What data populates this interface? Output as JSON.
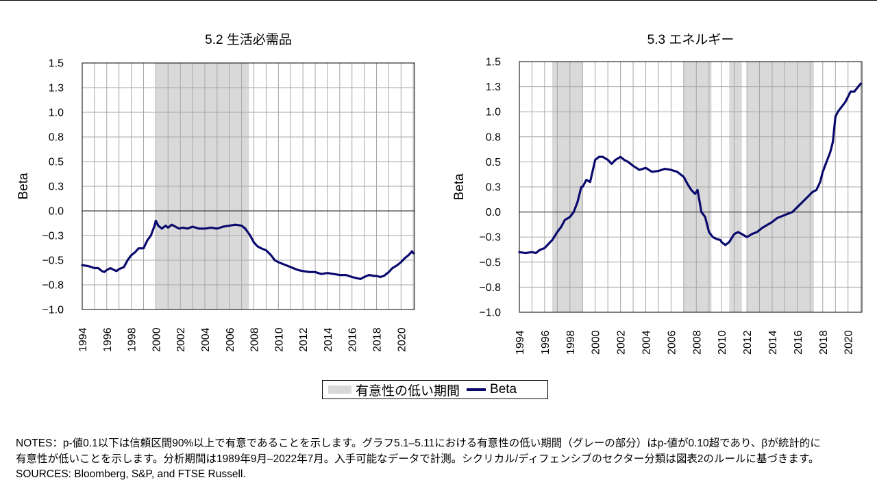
{
  "colors": {
    "shade": "#d9d9d9",
    "beta_line": "#0a0a6e",
    "grid": "#a6a6a6"
  },
  "legend": {
    "shade_label": "有意性の低い期間",
    "line_label": "Beta"
  },
  "notes": {
    "line1": "NOTES：p-値0.1以下は信頼区間90%以上で有意であることを示します。グラフ5.1–5.11における有意性の低い期間（グレーの部分）はp-値が0.10超であり、βが統計的に",
    "line2": "有意性が低いことを示します。分析期間は1989年9月–2022年7月。入手可能なデータで計測。シクリカル/ディフェンシブのセクター分類は図表2のルールに基づきます。",
    "sources": "SOURCES: Bloomberg, S&P, and FTSE Russell."
  },
  "chart_data": [
    {
      "type": "line",
      "title": "5.2 生活必需品",
      "ylabel": "Beta",
      "xlim": [
        1994,
        2021.1
      ],
      "ylim": [
        -1.0,
        1.5
      ],
      "x_ticks": [
        "1994",
        "1996",
        "1998",
        "2000",
        "2002",
        "2004",
        "2006",
        "2008",
        "2010",
        "2012",
        "2014",
        "2016",
        "2018",
        "2020"
      ],
      "y_ticks": [
        "1.5",
        "1.3",
        "1.0",
        "0.8",
        "0.5",
        "0.3",
        "0.0",
        "−0.3",
        "−0.5",
        "−0.8",
        "−1.0"
      ],
      "grid": true,
      "legend_position": "bottom-center",
      "shaded_periods": [
        [
          2000.0,
          2007.6
        ]
      ],
      "series": [
        {
          "name": "Beta",
          "x": [
            1994.0,
            1994.5,
            1995.0,
            1995.3,
            1995.6,
            1995.8,
            1996.0,
            1996.3,
            1996.6,
            1996.8,
            1997.0,
            1997.4,
            1997.7,
            1998.0,
            1998.3,
            1998.6,
            1999.0,
            1999.3,
            1999.6,
            1999.9,
            2000.0,
            2000.2,
            2000.5,
            2000.8,
            2001.0,
            2001.3,
            2001.6,
            2001.9,
            2002.2,
            2002.6,
            2003.0,
            2003.5,
            2004.0,
            2004.5,
            2005.0,
            2005.5,
            2006.0,
            2006.5,
            2007.0,
            2007.3,
            2007.7,
            2008.0,
            2008.3,
            2008.6,
            2009.0,
            2009.4,
            2009.7,
            2010.0,
            2010.4,
            2010.8,
            2011.2,
            2011.6,
            2012.0,
            2012.5,
            2013.0,
            2013.5,
            2014.0,
            2014.5,
            2015.0,
            2015.5,
            2016.0,
            2016.3,
            2016.7,
            2017.0,
            2017.4,
            2017.8,
            2018.0,
            2018.3,
            2018.6,
            2019.0,
            2019.3,
            2019.7,
            2020.0,
            2020.3,
            2020.6,
            2020.9,
            2021.0
          ],
          "values": [
            -0.55,
            -0.56,
            -0.58,
            -0.58,
            -0.61,
            -0.62,
            -0.6,
            -0.58,
            -0.6,
            -0.61,
            -0.59,
            -0.57,
            -0.5,
            -0.45,
            -0.42,
            -0.38,
            -0.38,
            -0.3,
            -0.25,
            -0.15,
            -0.1,
            -0.15,
            -0.18,
            -0.15,
            -0.17,
            -0.14,
            -0.16,
            -0.18,
            -0.17,
            -0.18,
            -0.16,
            -0.18,
            -0.18,
            -0.17,
            -0.18,
            -0.16,
            -0.15,
            -0.14,
            -0.15,
            -0.18,
            -0.25,
            -0.32,
            -0.36,
            -0.38,
            -0.4,
            -0.45,
            -0.5,
            -0.52,
            -0.54,
            -0.56,
            -0.58,
            -0.6,
            -0.61,
            -0.62,
            -0.62,
            -0.64,
            -0.63,
            -0.64,
            -0.65,
            -0.65,
            -0.67,
            -0.68,
            -0.69,
            -0.67,
            -0.65,
            -0.66,
            -0.66,
            -0.67,
            -0.66,
            -0.62,
            -0.58,
            -0.55,
            -0.52,
            -0.48,
            -0.45,
            -0.41,
            -0.43
          ]
        }
      ]
    },
    {
      "type": "line",
      "title": "5.3 エネルギー",
      "ylabel": "Beta",
      "xlim": [
        1994,
        2021.1
      ],
      "ylim": [
        -1.0,
        1.5
      ],
      "x_ticks": [
        "1994",
        "1996",
        "1998",
        "2000",
        "2002",
        "2004",
        "2006",
        "2008",
        "2010",
        "2012",
        "2014",
        "2016",
        "2018",
        "2020"
      ],
      "y_ticks": [
        "1.5",
        "1.3",
        "1.0",
        "0.8",
        "0.5",
        "0.3",
        "0.0",
        "−0.3",
        "−0.5",
        "−0.8",
        "−1.0"
      ],
      "grid": true,
      "legend_position": "bottom-center",
      "shaded_periods": [
        [
          1996.6,
          1999.0
        ],
        [
          2007.0,
          2009.2
        ],
        [
          2010.6,
          2011.6
        ],
        [
          2012.0,
          2017.3
        ]
      ],
      "series": [
        {
          "name": "Beta",
          "x": [
            1994.0,
            1994.5,
            1995.0,
            1995.3,
            1995.6,
            1996.0,
            1996.3,
            1996.6,
            1997.0,
            1997.3,
            1997.6,
            1998.0,
            1998.3,
            1998.6,
            1998.9,
            1999.0,
            1999.3,
            1999.6,
            2000.0,
            2000.3,
            2000.6,
            2001.0,
            2001.3,
            2001.6,
            2002.0,
            2002.3,
            2002.6,
            2003.0,
            2003.5,
            2004.0,
            2004.5,
            2005.0,
            2005.5,
            2006.0,
            2006.5,
            2007.0,
            2007.3,
            2007.6,
            2007.9,
            2008.1,
            2008.4,
            2008.7,
            2009.0,
            2009.3,
            2009.6,
            2009.9,
            2010.0,
            2010.3,
            2010.6,
            2011.0,
            2011.3,
            2011.6,
            2012.0,
            2012.4,
            2012.8,
            2013.2,
            2013.6,
            2014.0,
            2014.4,
            2014.8,
            2015.2,
            2015.6,
            2016.0,
            2016.4,
            2016.8,
            2017.2,
            2017.5,
            2017.8,
            2018.0,
            2018.3,
            2018.6,
            2018.8,
            2019.0,
            2019.2,
            2019.5,
            2019.8,
            2020.0,
            2020.2,
            2020.5,
            2020.8,
            2021.0
          ],
          "values": [
            -0.4,
            -0.41,
            -0.4,
            -0.41,
            -0.38,
            -0.36,
            -0.32,
            -0.28,
            -0.2,
            -0.15,
            -0.08,
            -0.05,
            0.0,
            0.1,
            0.25,
            0.25,
            0.32,
            0.3,
            0.52,
            0.55,
            0.55,
            0.52,
            0.48,
            0.52,
            0.55,
            0.52,
            0.5,
            0.46,
            0.42,
            0.44,
            0.4,
            0.41,
            0.43,
            0.42,
            0.4,
            0.35,
            0.28,
            0.22,
            0.18,
            0.22,
            0.0,
            -0.05,
            -0.2,
            -0.25,
            -0.27,
            -0.28,
            -0.3,
            -0.33,
            -0.3,
            -0.22,
            -0.2,
            -0.22,
            -0.25,
            -0.22,
            -0.2,
            -0.16,
            -0.13,
            -0.1,
            -0.06,
            -0.04,
            -0.02,
            0.0,
            0.05,
            0.1,
            0.15,
            0.2,
            0.22,
            0.3,
            0.4,
            0.5,
            0.6,
            0.7,
            0.95,
            1.0,
            1.05,
            1.1,
            1.15,
            1.2,
            1.2,
            1.25,
            1.28
          ]
        }
      ]
    }
  ]
}
